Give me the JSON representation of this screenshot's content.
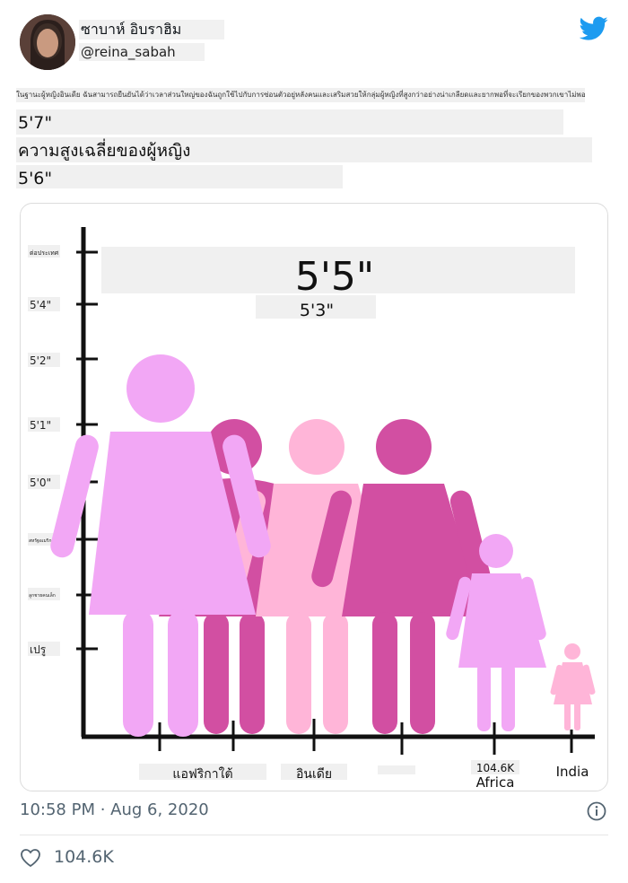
{
  "tweet": {
    "author_name": "ซาบาห์ อิบราฮิม",
    "author_handle": "@reina_sabah",
    "body_text": "ในฐานะผู้หญิงอินเดีย ฉันสามารถยืนยันได้ว่าเวลาส่วนใหญ่ของฉันถูกใช้ไปกับการซ่อนตัวอยู่หลังคนและเสริมสวยให้กลุ่มผู้หญิงที่สูงกว่าอย่างน่าเกลียดและยากพอที่จะเรียกของพวกเขาไม่พอฉัน",
    "line_1": "5'7\"",
    "line_2": "ความสูงเฉลี่ยของผู้หญิง",
    "line_3": "5'6\"",
    "timestamp": "10:58 PM · Aug 6, 2020",
    "likes": "104.6K",
    "colors": {
      "twitter_blue": "#1d9bf0",
      "meta_gray": "#536471"
    },
    "icons": [
      "twitter-bird-icon",
      "info-icon",
      "heart-icon"
    ]
  },
  "chart_data": {
    "type": "bar",
    "y_tick_labels": [
      "5'4\"",
      "5'2\"",
      "5'1\"",
      "5'0\"",
      "เปรู"
    ],
    "y_tick_labels_small": [
      "ต่อประเทศ",
      "สหรัฐอเมริกา",
      "ลูกชายคนเล็ก"
    ],
    "overlay_big": "5'5\"",
    "overlay_small": "5'3\"",
    "x_labels": [
      "แอฟริกาใต้",
      "อินเดีย",
      "104.6K",
      "Africa",
      "India"
    ],
    "figures": [
      {
        "color": "#f2a7f5"
      },
      {
        "color": "#d24fa2"
      },
      {
        "color": "#ffb5d8"
      },
      {
        "color": "#d24fa2"
      },
      {
        "color": "#f2a7f5"
      },
      {
        "color": "#ffb5d8"
      }
    ]
  }
}
